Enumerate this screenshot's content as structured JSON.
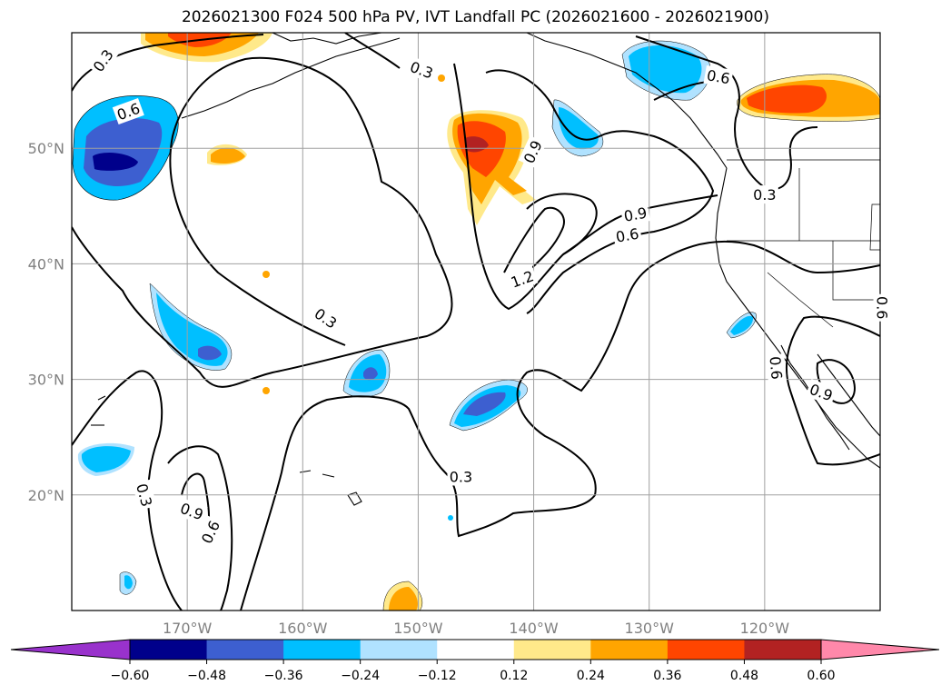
{
  "title": "2026021300 F024 500 hPa PV, IVT Landfall PC (2026021600 - 2026021900)",
  "map": {
    "lon_range": [
      -180,
      -110
    ],
    "lat_range": [
      10,
      60
    ],
    "lon_ticks": [
      {
        "lon": -170,
        "label": "170°W"
      },
      {
        "lon": -160,
        "label": "160°W"
      },
      {
        "lon": -150,
        "label": "150°W"
      },
      {
        "lon": -140,
        "label": "140°W"
      },
      {
        "lon": -130,
        "label": "130°W"
      },
      {
        "lon": -120,
        "label": "120°W"
      }
    ],
    "lat_ticks": [
      {
        "lat": 20,
        "label": "20°N"
      },
      {
        "lat": 30,
        "label": "30°N"
      },
      {
        "lat": 40,
        "label": "40°N"
      },
      {
        "lat": 50,
        "label": "50°N"
      }
    ],
    "gridline_color": "#a0a0a0",
    "tick_color": "#808080"
  },
  "contour_labels": [
    {
      "text": "0.3",
      "lon": -177.3,
      "lat": 57.6,
      "rot": -55
    },
    {
      "text": "0.6",
      "lon": -175.1,
      "lat": 53.2,
      "rot": -20
    },
    {
      "text": "0.3",
      "lon": -149.7,
      "lat": 56.8,
      "rot": 20
    },
    {
      "text": "0.6",
      "lon": -124.0,
      "lat": 56.2,
      "rot": 10
    },
    {
      "text": "0.9",
      "lon": -140.1,
      "lat": 49.7,
      "rot": -65
    },
    {
      "text": "0.9",
      "lon": -131.2,
      "lat": 44.3,
      "rot": -10
    },
    {
      "text": "0.6",
      "lon": -131.9,
      "lat": 42.5,
      "rot": -10
    },
    {
      "text": "0.3",
      "lon": -120.0,
      "lat": 46.0,
      "rot": 0
    },
    {
      "text": "1.2",
      "lon": -141.0,
      "lat": 38.7,
      "rot": -20
    },
    {
      "text": "0.3",
      "lon": -158.0,
      "lat": 35.3,
      "rot": 35
    },
    {
      "text": "0.6",
      "lon": -109.8,
      "lat": 36.2,
      "rot": 90
    },
    {
      "text": "0.6",
      "lon": -119.0,
      "lat": 31.0,
      "rot": 85
    },
    {
      "text": "0.9",
      "lon": -115.1,
      "lat": 28.9,
      "rot": 20
    },
    {
      "text": "0.3",
      "lon": -146.3,
      "lat": 21.6,
      "rot": 0
    },
    {
      "text": "0.3",
      "lon": -173.7,
      "lat": 20.0,
      "rot": 75
    },
    {
      "text": "0.9",
      "lon": -169.6,
      "lat": 18.6,
      "rot": 20
    },
    {
      "text": "0.6",
      "lon": -168.0,
      "lat": 16.8,
      "rot": -65
    }
  ],
  "colorbar": {
    "min_color": "#9932cc",
    "max_color": "#ff88aa",
    "colors": [
      "#9932cc",
      "#00008b",
      "#3d5fd0",
      "#00bfff",
      "#b0e2ff",
      "#ffffff",
      "#ffe98a",
      "#ffa500",
      "#ff4500",
      "#b22222",
      "#ff88aa"
    ],
    "tick_labels": [
      "−0.60",
      "−0.48",
      "−0.36",
      "−0.24",
      "−0.12",
      "0.12",
      "0.24",
      "0.36",
      "0.48",
      "0.60"
    ]
  }
}
